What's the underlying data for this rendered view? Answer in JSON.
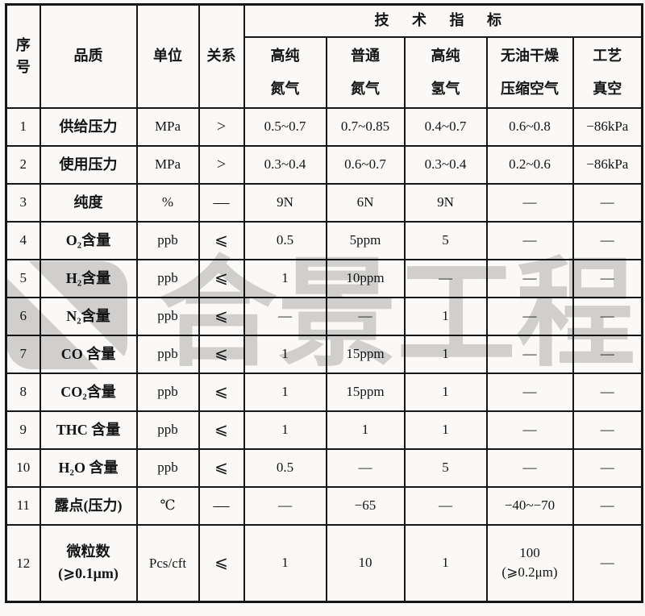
{
  "page": {
    "background_color": "#faf9f7",
    "grid_line_color": "#161616",
    "watermark_color": "#d4d4d4"
  },
  "table": {
    "header": {
      "serial": "序号",
      "quality": "品质",
      "unit": "单位",
      "relation": "关系",
      "tech_title": "技 术 指 标",
      "gas_columns": [
        "高纯\n氮气",
        "普通\n氮气",
        "高纯\n氢气",
        "无油干燥\n压缩空气",
        "工艺\n真空"
      ]
    },
    "rows": [
      {
        "no": "1",
        "quality": "供给压力",
        "unit": "MPa",
        "rel": ">",
        "v": [
          "0.5~0.7",
          "0.7~0.85",
          "0.4~0.7",
          "0.6~0.8",
          "−86kPa"
        ]
      },
      {
        "no": "2",
        "quality": "使用压力",
        "unit": "MPa",
        "rel": ">",
        "v": [
          "0.3~0.4",
          "0.6~0.7",
          "0.3~0.4",
          "0.2~0.6",
          "−86kPa"
        ]
      },
      {
        "no": "3",
        "quality": "纯度",
        "unit": "%",
        "rel": "—",
        "v": [
          "9N",
          "6N",
          "9N",
          "—",
          "—"
        ]
      },
      {
        "no": "4",
        "quality": "O₂含量",
        "unit": "ppb",
        "rel": "⩽",
        "v": [
          "0.5",
          "5ppm",
          "5",
          "—",
          "—"
        ]
      },
      {
        "no": "5",
        "quality": "H₂含量",
        "unit": "ppb",
        "rel": "⩽",
        "v": [
          "1",
          "10ppm",
          "—",
          "—",
          "—"
        ]
      },
      {
        "no": "6",
        "quality": "N₂含量",
        "unit": "ppb",
        "rel": "⩽",
        "v": [
          "—",
          "—",
          "1",
          "—",
          "—"
        ]
      },
      {
        "no": "7",
        "quality": "CO 含量",
        "unit": "ppb",
        "rel": "⩽",
        "v": [
          "1",
          "15ppm",
          "1",
          "—",
          "—"
        ]
      },
      {
        "no": "8",
        "quality": "CO₂含量",
        "unit": "ppb",
        "rel": "⩽",
        "v": [
          "1",
          "15ppm",
          "1",
          "—",
          "—"
        ]
      },
      {
        "no": "9",
        "quality": "THC 含量",
        "unit": "ppb",
        "rel": "⩽",
        "v": [
          "1",
          "1",
          "1",
          "—",
          "—"
        ]
      },
      {
        "no": "10",
        "quality": "H₂O 含量",
        "unit": "ppb",
        "rel": "⩽",
        "v": [
          "0.5",
          "—",
          "5",
          "—",
          "—"
        ]
      },
      {
        "no": "11",
        "quality": "露点(压力)",
        "unit": "℃",
        "rel": "—",
        "v": [
          "—",
          "−65",
          "—",
          "−40~−70",
          "—"
        ]
      },
      {
        "no": "12",
        "quality": "微粒数\n(⩾0.1μm)",
        "unit": "Pcs/cft",
        "rel": "⩽",
        "v": [
          "1",
          "10",
          "1",
          "100\n(⩾0.2μm)",
          "—"
        ]
      }
    ]
  },
  "watermark": {
    "text": "合景工程",
    "logo_icon": "rounded-square-slash-logo"
  }
}
